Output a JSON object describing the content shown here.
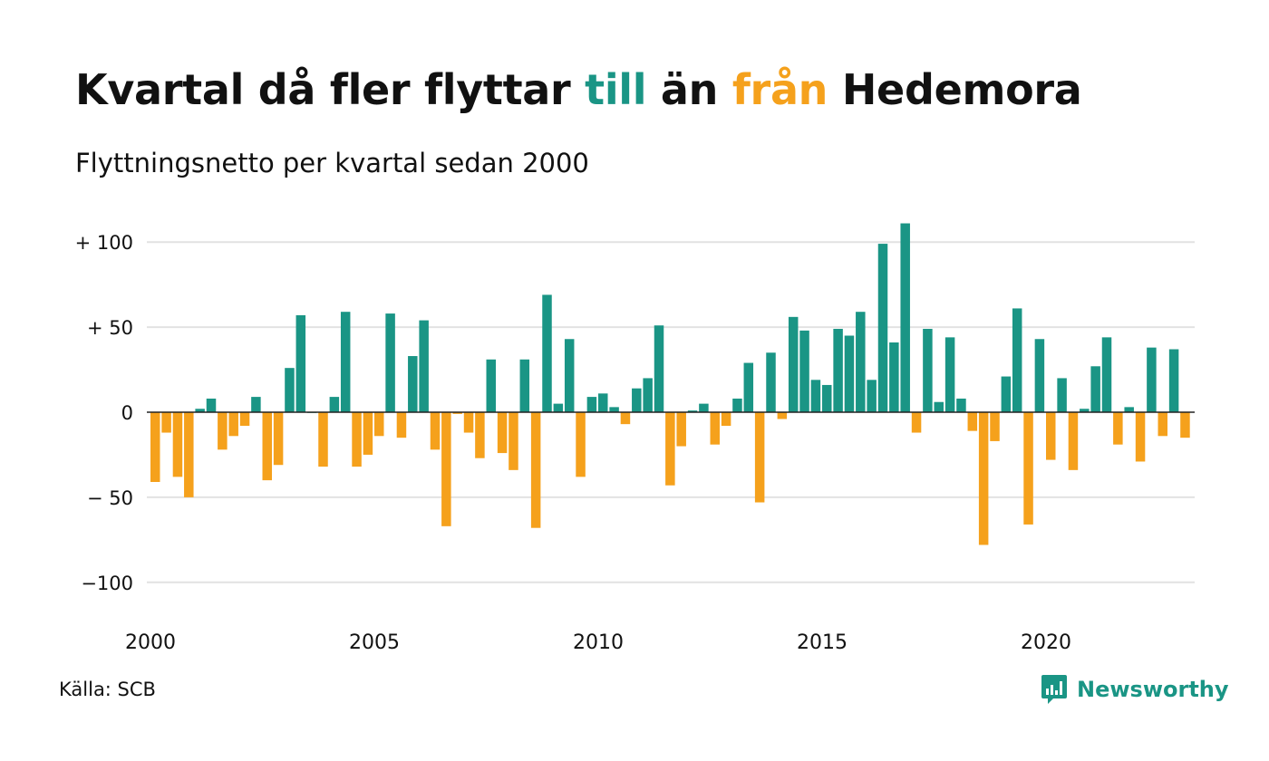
{
  "title": {
    "part1": "Kvartal då fler flyttar ",
    "pos_word": "till",
    "part2": " än ",
    "neg_word": "från",
    "part3": " Hedemora"
  },
  "subtitle": "Flyttningsnetto per kvartal sedan 2000",
  "source": "Källa: SCB",
  "brand": {
    "name": "Newsworthy",
    "icon": "newsworthy-logo-icon"
  },
  "colors": {
    "positive": "#1a9585",
    "negative": "#f5a11c",
    "grid": "#e2e2e2",
    "zero": "#222222"
  },
  "chart_data": {
    "type": "bar",
    "x_start": "2000 Q1",
    "frequency": "quarterly",
    "xticks": [
      {
        "label": "2000",
        "index": 0
      },
      {
        "label": "2005",
        "index": 20
      },
      {
        "label": "2010",
        "index": 40
      },
      {
        "label": "2015",
        "index": 60
      },
      {
        "label": "2020",
        "index": 80
      }
    ],
    "yticks": [
      {
        "value": 100,
        "label": "+ 100"
      },
      {
        "value": 50,
        "label": "+  50"
      },
      {
        "value": 0,
        "label": "0"
      },
      {
        "value": -50,
        "label": "− 50"
      },
      {
        "value": -100,
        "label": "−100"
      }
    ],
    "ylim": [
      -125,
      111
    ],
    "grid": true,
    "values": [
      -41,
      -12,
      -38,
      -50,
      2,
      8,
      -22,
      -14,
      -8,
      9,
      -40,
      -31,
      26,
      57,
      0,
      -32,
      9,
      59,
      -32,
      -25,
      -14,
      58,
      -15,
      33,
      54,
      -22,
      -67,
      -1,
      -12,
      -27,
      31,
      -24,
      -34,
      31,
      -68,
      69,
      5,
      43,
      -38,
      9,
      11,
      3,
      -7,
      14,
      20,
      51,
      -43,
      -20,
      1,
      5,
      -19,
      -8,
      8,
      29,
      -53,
      35,
      -4,
      56,
      48,
      19,
      16,
      49,
      45,
      59,
      19,
      99,
      41,
      111,
      -12,
      49,
      6,
      44,
      8,
      -11,
      -78,
      -17,
      21,
      61,
      -66,
      43,
      -28,
      20,
      -34,
      2,
      27,
      44,
      -19,
      3,
      -29,
      38,
      -14,
      37,
      -15
    ]
  }
}
